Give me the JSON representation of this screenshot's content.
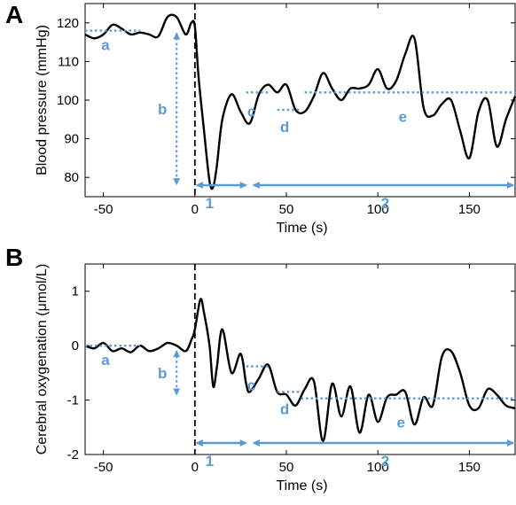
{
  "colors": {
    "annotation": "#5b9bd5",
    "trace": "#000000",
    "event_line": "#000000"
  },
  "chart_data": [
    {
      "type": "line",
      "panel": "A",
      "xlabel": "Time (s)",
      "ylabel": "Blood pressure (mmHg)",
      "xlim": [
        -60,
        175
      ],
      "ylim": [
        75,
        125
      ],
      "xticks": [
        -50,
        0,
        50,
        100,
        150
      ],
      "yticks": [
        80,
        90,
        100,
        110,
        120
      ],
      "event_time": 0,
      "series": [
        {
          "x": [
            -60,
            -55,
            -50,
            -45,
            -40,
            -35,
            -30,
            -25,
            -20,
            -15,
            -10,
            -5,
            -2,
            0,
            2,
            5,
            8,
            10,
            12,
            15,
            20,
            25,
            30,
            35,
            40,
            45,
            50,
            55,
            60,
            65,
            70,
            75,
            80,
            85,
            90,
            95,
            100,
            105,
            110,
            115,
            120,
            125,
            130,
            135,
            140,
            145,
            150,
            155,
            160,
            165,
            170,
            175
          ],
          "y": [
            117,
            116,
            117,
            119.5,
            118.5,
            117,
            117.5,
            117,
            116.5,
            121.5,
            121.5,
            117,
            120,
            119,
            106,
            92,
            79,
            77.5,
            83,
            95,
            101.5,
            97,
            94,
            101.5,
            104,
            102,
            104,
            97.5,
            97,
            101,
            107,
            103,
            100,
            103,
            103,
            104,
            108,
            103,
            105,
            112,
            116,
            98,
            96,
            99,
            100,
            92,
            85,
            97,
            100,
            88,
            95,
            101
          ]
        }
      ],
      "annotations": {
        "letters": [
          "a",
          "b",
          "c",
          "d",
          "e"
        ],
        "phase_labels": [
          "1",
          "2"
        ],
        "baselines": [
          {
            "label": "a",
            "x": [
              -60,
              -30
            ],
            "y": 118
          },
          {
            "label": "c",
            "x": [
              28,
              40
            ],
            "y": 102
          },
          {
            "label": "d",
            "x": [
              45,
              58
            ],
            "y": 97.5
          },
          {
            "label": "e",
            "x": [
              60,
              175
            ],
            "y": 102
          }
        ],
        "drop_arrow": {
          "label": "b",
          "x": -10,
          "y": [
            118,
            77.5
          ]
        },
        "phase_arrows": [
          {
            "label": "1",
            "x": [
              0,
              29
            ]
          },
          {
            "label": "2",
            "x": [
              31,
              175
            ]
          }
        ]
      }
    },
    {
      "type": "line",
      "panel": "B",
      "xlabel": "Time (s)",
      "ylabel": "Cerebral oxygenation (μmol/L)",
      "xlim": [
        -60,
        175
      ],
      "ylim": [
        -2,
        1.5
      ],
      "xticks": [
        -50,
        0,
        50,
        100,
        150
      ],
      "yticks": [
        -2,
        -1,
        0,
        1
      ],
      "event_time": 0,
      "series": [
        {
          "x": [
            -60,
            -55,
            -50,
            -45,
            -40,
            -35,
            -30,
            -25,
            -20,
            -15,
            -10,
            -5,
            -2,
            0,
            3,
            5,
            8,
            10,
            12,
            15,
            20,
            25,
            28,
            30,
            35,
            40,
            45,
            50,
            55,
            60,
            65,
            70,
            75,
            80,
            85,
            90,
            95,
            100,
            105,
            110,
            115,
            120,
            125,
            130,
            135,
            140,
            145,
            150,
            155,
            160,
            165,
            170,
            175
          ],
          "y": [
            0,
            -0.05,
            0.05,
            -0.1,
            -0.05,
            -0.12,
            0,
            -0.1,
            -0.05,
            0.05,
            0,
            -0.1,
            0.1,
            0.3,
            0.85,
            0.6,
            0,
            -0.75,
            -0.4,
            0.3,
            -0.5,
            -0.15,
            -0.7,
            -0.85,
            -0.6,
            -0.35,
            -0.85,
            -0.9,
            -1.1,
            -0.8,
            -0.65,
            -1.75,
            -0.7,
            -1.3,
            -0.75,
            -1.6,
            -0.9,
            -1.4,
            -0.95,
            -0.9,
            -0.85,
            -1.45,
            -0.95,
            -1.1,
            -0.2,
            -0.1,
            -0.5,
            -1.1,
            -1.15,
            -0.8,
            -0.9,
            -1.1,
            -1.15
          ]
        }
      ],
      "annotations": {
        "letters": [
          "a",
          "b",
          "c",
          "d",
          "e"
        ],
        "phase_labels": [
          "1",
          "2"
        ],
        "baselines": [
          {
            "label": "a",
            "x": [
              -60,
              -30
            ],
            "y": 0
          },
          {
            "label": "c",
            "x": [
              28,
              40
            ],
            "y": -0.38
          },
          {
            "label": "d",
            "x": [
              45,
              58
            ],
            "y": -0.85
          },
          {
            "label": "e",
            "x": [
              58,
              175
            ],
            "y": -0.97
          }
        ],
        "drop_arrow": {
          "label": "b",
          "x": -10,
          "y": [
            -0.05,
            -0.95
          ]
        },
        "phase_arrows": [
          {
            "label": "1",
            "x": [
              0,
              29
            ]
          },
          {
            "label": "2",
            "x": [
              31,
              175
            ]
          }
        ]
      }
    }
  ]
}
